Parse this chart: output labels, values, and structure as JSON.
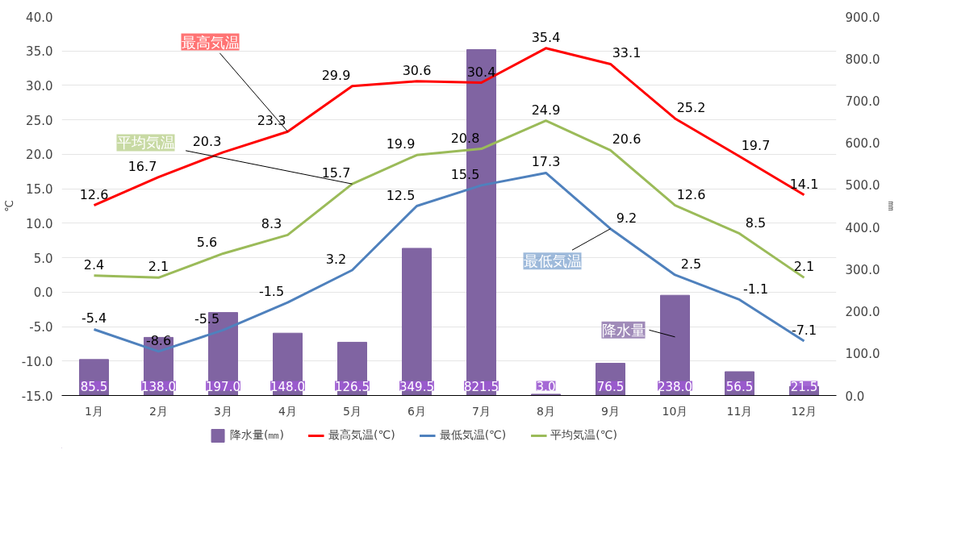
{
  "chart_data": {
    "type": "line",
    "categories": [
      "1月",
      "2月",
      "3月",
      "4月",
      "5月",
      "6月",
      "7月",
      "8月",
      "9月",
      "10月",
      "11月",
      "12月"
    ],
    "ylabel": "℃",
    "y2label": "㎜",
    "ylim": [
      -15,
      40
    ],
    "yticks": [
      {
        "value": -15,
        "label": "-15.0"
      },
      {
        "value": -10,
        "label": "-10.0"
      },
      {
        "value": -5,
        "label": "-5.0"
      },
      {
        "value": 0,
        "label": "0.0"
      },
      {
        "value": 5,
        "label": "5.0"
      },
      {
        "value": 10,
        "label": "10.0"
      },
      {
        "value": 15,
        "label": "15.0"
      },
      {
        "value": 20,
        "label": "20.0"
      },
      {
        "value": 25,
        "label": "25.0"
      },
      {
        "value": 30,
        "label": "30.0"
      },
      {
        "value": 35,
        "label": "35.0"
      },
      {
        "value": 40,
        "label": "40.0"
      }
    ],
    "y2lim": [
      0,
      900
    ],
    "y2ticks": [
      {
        "value": 0,
        "label": "0.0"
      },
      {
        "value": 100,
        "label": "100.0"
      },
      {
        "value": 200,
        "label": "200.0"
      },
      {
        "value": 300,
        "label": "300.0"
      },
      {
        "value": 400,
        "label": "400.0"
      },
      {
        "value": 500,
        "label": "500.0"
      },
      {
        "value": 600,
        "label": "600.0"
      },
      {
        "value": 700,
        "label": "700.0"
      },
      {
        "value": 800,
        "label": "800.0"
      },
      {
        "value": 900,
        "label": "900.0"
      }
    ],
    "grid": "y",
    "legend": "bottom",
    "data_labels": true,
    "marker": "none",
    "series": [
      {
        "name": "降水量(㎜)",
        "type": "bar",
        "axis": "y2",
        "color": "#8064a2",
        "values": [
          85.5,
          138.0,
          197.0,
          148.0,
          126.5,
          349.5,
          821.5,
          3.0,
          76.5,
          238.0,
          56.5,
          21.5
        ],
        "value_labels": [
          "85.5",
          "138.0",
          "197.0",
          "148.0",
          "126.5",
          "349.5",
          "821.5",
          "3.0",
          "76.5",
          "238.0",
          "56.5",
          "21.5"
        ]
      },
      {
        "name": "最高気温(℃)",
        "color": "#ff0000",
        "values": [
          12.6,
          16.7,
          20.3,
          23.3,
          29.9,
          30.6,
          30.4,
          35.4,
          33.1,
          25.2,
          19.7,
          14.1
        ]
      },
      {
        "name": "最低気温(℃)",
        "color": "#4f81bd",
        "values": [
          -5.4,
          -8.6,
          -5.5,
          -1.5,
          3.2,
          12.5,
          15.5,
          17.3,
          9.2,
          2.5,
          -1.1,
          -7.1
        ]
      },
      {
        "name": "平均気温(℃)",
        "color": "#9bbb59",
        "values": [
          2.4,
          2.1,
          5.6,
          8.3,
          15.7,
          19.9,
          20.8,
          24.9,
          20.6,
          12.6,
          8.5,
          2.1
        ]
      }
    ],
    "annotations": [
      "降水量",
      {
        "text": "最高気温",
        "x": "4月",
        "y": 23.3
      },
      {
        "text": "最低気温",
        "x": "9月",
        "y": 9.2
      },
      {
        "text": "平均気温",
        "x": "5月",
        "y": 15.7
      }
    ]
  }
}
